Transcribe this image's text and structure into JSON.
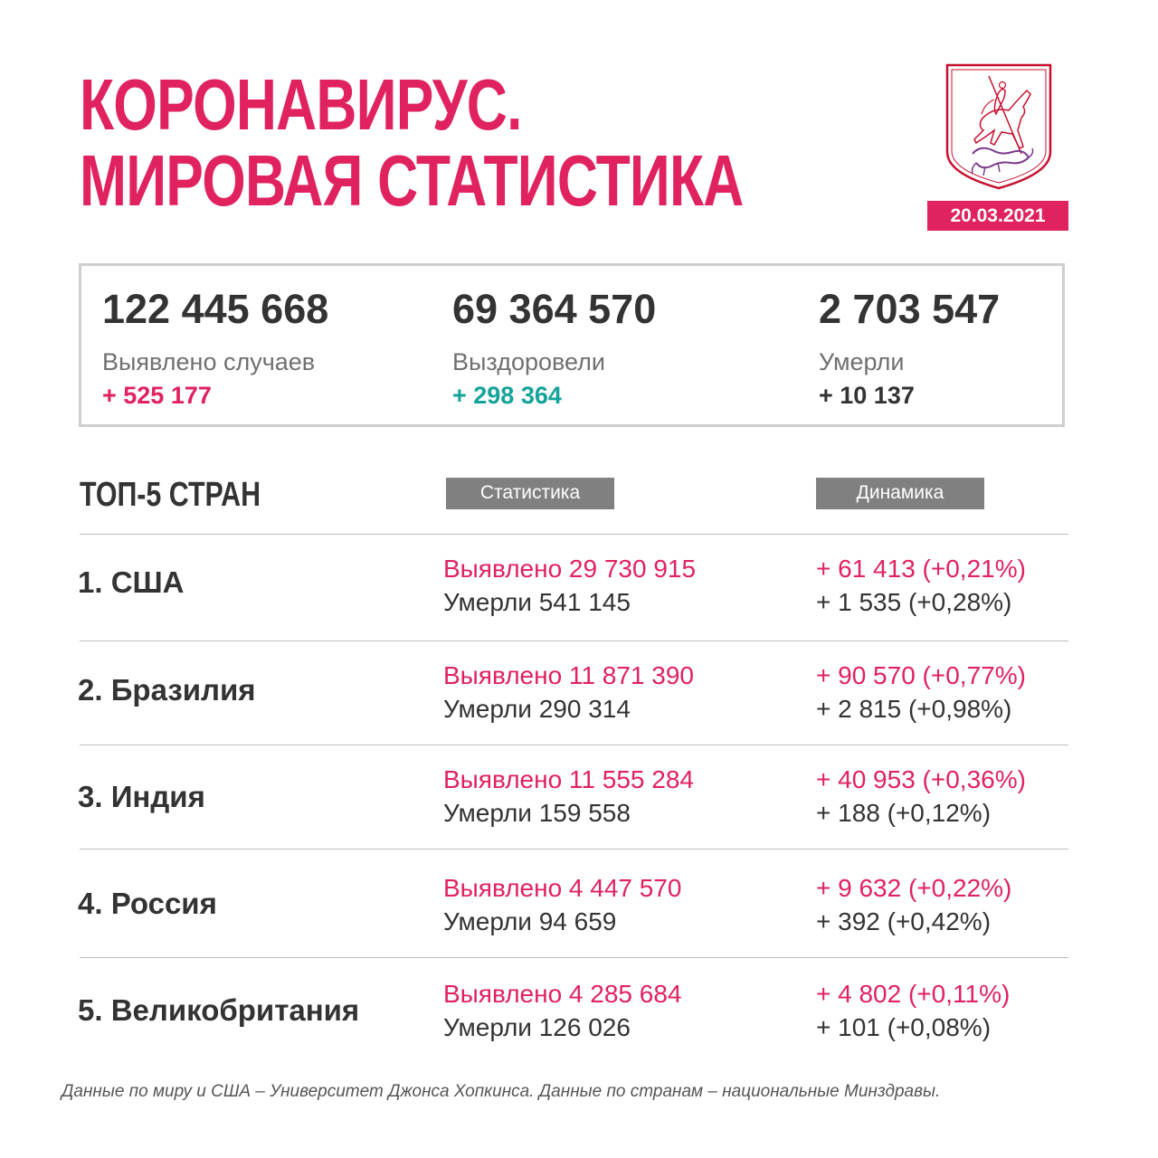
{
  "header": {
    "title_line1": "КОРОНАВИРУС.",
    "title_line2": "МИРОВАЯ СТАТИСТИКА",
    "date": "20.03.2021"
  },
  "summary": {
    "cases": {
      "value": "122 445 668",
      "label": "Выявлено случаев",
      "delta": "+ 525 177"
    },
    "recovered": {
      "value": "69 364 570",
      "label": "Выздоровели",
      "delta": "+ 298 364"
    },
    "deaths": {
      "value": "2 703 547",
      "label": "Умерли",
      "delta": "+ 10 137"
    }
  },
  "top5": {
    "title": "ТОП-5 СТРАН",
    "col_stats": "Статистика",
    "col_dynamics": "Динамика",
    "rows": [
      {
        "country": "1. США",
        "cases": "Выявлено 29 730 915",
        "deaths": "Умерли 541 145",
        "cases_delta": "+ 61 413 (+0,21%)",
        "deaths_delta": "+ 1 535 (+0,28%)"
      },
      {
        "country": "2. Бразилия",
        "cases": "Выявлено 11 871 390",
        "deaths": "Умерли 290 314",
        "cases_delta": "+ 90 570 (+0,77%)",
        "deaths_delta": "+ 2 815 (+0,98%)"
      },
      {
        "country": "3. Индия",
        "cases": "Выявлено 11 555 284",
        "deaths": "Умерли 159 558",
        "cases_delta": "+ 40 953 (+0,36%)",
        "deaths_delta": "+ 188 (+0,12%)"
      },
      {
        "country": "4. Россия",
        "cases": "Выявлено 4 447 570",
        "deaths": "Умерли 94 659",
        "cases_delta": "+ 9 632 (+0,22%)",
        "deaths_delta": "+ 392 (+0,42%)"
      },
      {
        "country": "5. Великобритания",
        "cases": "Выявлено 4 285 684",
        "deaths": "Умерли 126 026",
        "cases_delta": "+ 4 802 (+0,11%)",
        "deaths_delta": "+ 101 (+0,08%)"
      }
    ]
  },
  "footer": "Данные по миру и США – Университет Джонса Хопкинса. Данные по странам – национальные Минздравы.",
  "colors": {
    "accent": "#e0225f",
    "teal": "#14a39a",
    "text": "#333333",
    "badge_gray": "#808080"
  },
  "icons": {
    "crest": "moscow-coat-of-arms-icon"
  }
}
